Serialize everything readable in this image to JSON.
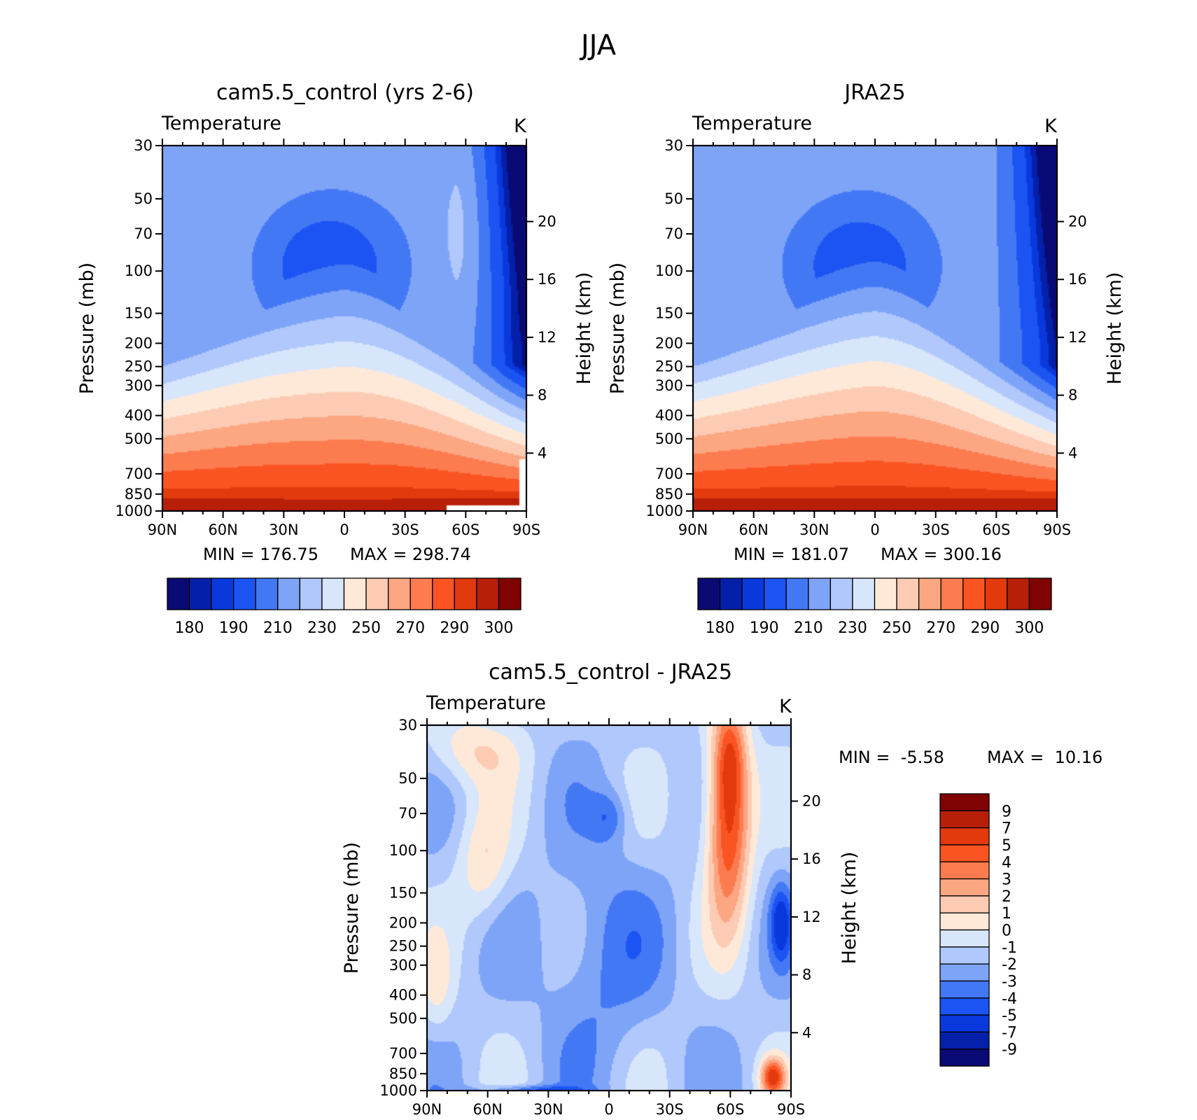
{
  "figure": {
    "title": "JJA"
  },
  "colors": {
    "abs_palette": [
      "#0a0a75",
      "#0420a9",
      "#0939dd",
      "#1b54f2",
      "#4378f5",
      "#7ea4f8",
      "#b0c8fb",
      "#d8e6fc",
      "#fee9d9",
      "#fdcbb3",
      "#fca682",
      "#fd7c4f",
      "#fb5423",
      "#e23a0d",
      "#b71f09",
      "#7f0303"
    ],
    "diff_palette": [
      "#7f0303",
      "#b71f09",
      "#e23a0d",
      "#fb5423",
      "#fd7c4f",
      "#fca682",
      "#fdcbb3",
      "#fee9d9",
      "#d8e6fc",
      "#b0c8fb",
      "#7ea4f8",
      "#4378f5",
      "#1b54f2",
      "#0939dd",
      "#0420a9",
      "#0a0a75"
    ]
  },
  "chart_data": [
    {
      "type": "heatmap",
      "title": "cam5.5_control (yrs 2-6)",
      "variable_label": "Temperature",
      "units_label": "K",
      "ylabel": "Pressure (mb)",
      "ylabel2": "Height (km)",
      "x_ticks": [
        "90N",
        "60N",
        "30N",
        "0",
        "30S",
        "60S",
        "90S"
      ],
      "y_ticks": [
        "30",
        "50",
        "70",
        "100",
        "150",
        "200",
        "250",
        "300",
        "400",
        "500",
        "700",
        "850",
        "1000"
      ],
      "y2_ticks": [
        "20",
        "16",
        "12",
        "8",
        "4"
      ],
      "min_text": "MIN = 176.75",
      "max_text": "MAX = 298.74",
      "colorbar_labels": [
        "180",
        "190",
        "210",
        "230",
        "250",
        "270",
        "290",
        "300"
      ],
      "field": "model"
    },
    {
      "type": "heatmap",
      "title": "JRA25",
      "variable_label": "Temperature",
      "units_label": "K",
      "ylabel": "Pressure (mb)",
      "ylabel2": "Height (km)",
      "x_ticks": [
        "90N",
        "60N",
        "30N",
        "0",
        "30S",
        "60S",
        "90S"
      ],
      "y_ticks": [
        "30",
        "50",
        "70",
        "100",
        "150",
        "200",
        "250",
        "300",
        "400",
        "500",
        "700",
        "850",
        "1000"
      ],
      "y2_ticks": [
        "20",
        "16",
        "12",
        "8",
        "4"
      ],
      "min_text": "MIN = 181.07",
      "max_text": "MAX = 300.16",
      "colorbar_labels": [
        "180",
        "190",
        "210",
        "230",
        "250",
        "270",
        "290",
        "300"
      ],
      "field": "obs"
    },
    {
      "type": "heatmap",
      "title": "cam5.5_control - JRA25",
      "variable_label": "Temperature",
      "units_label": "K",
      "ylabel": "Pressure (mb)",
      "ylabel2": "Height (km)",
      "x_ticks": [
        "90N",
        "60N",
        "30N",
        "0",
        "30S",
        "60S",
        "90S"
      ],
      "y_ticks": [
        "30",
        "50",
        "70",
        "100",
        "150",
        "200",
        "250",
        "300",
        "400",
        "500",
        "700",
        "850",
        "1000"
      ],
      "y2_ticks": [
        "20",
        "16",
        "12",
        "8",
        "4"
      ],
      "min_text": "MIN =  -5.58",
      "max_text": "MAX =  10.16",
      "colorbar_labels": [
        "9",
        "7",
        "5",
        "4",
        "3",
        "2",
        "1",
        "0",
        "-1",
        "-2",
        "-3",
        "-4",
        "-5",
        "-7",
        "-9"
      ],
      "field": "diff"
    }
  ]
}
